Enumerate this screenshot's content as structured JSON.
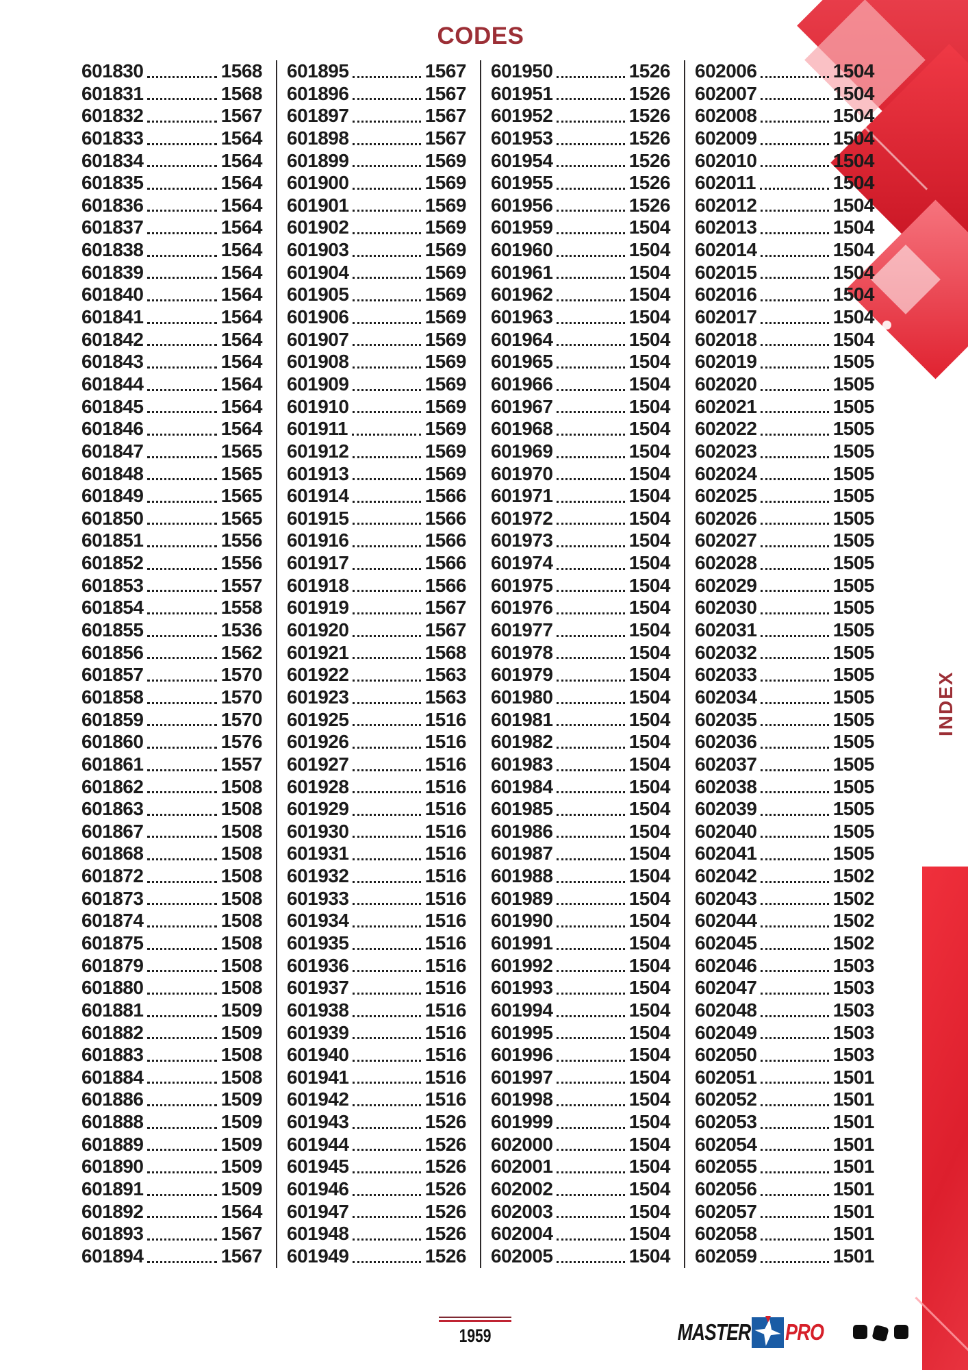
{
  "page": {
    "title": "CODES",
    "page_number": "1959",
    "index_tab_label": "INDEX"
  },
  "footer": {
    "logo_master": "MASTER",
    "logo_pro": "PRO"
  },
  "colors": {
    "title_red": "#9c2f36",
    "accent_red": "#e01f2c",
    "logo_blue": "#1a5ca5",
    "logo_red": "#d6202a"
  },
  "columns": [
    [
      [
        "601830",
        "1568"
      ],
      [
        "601831",
        "1568"
      ],
      [
        "601832",
        "1567"
      ],
      [
        "601833",
        "1564"
      ],
      [
        "601834",
        "1564"
      ],
      [
        "601835",
        "1564"
      ],
      [
        "601836",
        "1564"
      ],
      [
        "601837",
        "1564"
      ],
      [
        "601838",
        "1564"
      ],
      [
        "601839",
        "1564"
      ],
      [
        "601840",
        "1564"
      ],
      [
        "601841",
        "1564"
      ],
      [
        "601842",
        "1564"
      ],
      [
        "601843",
        "1564"
      ],
      [
        "601844",
        "1564"
      ],
      [
        "601845",
        "1564"
      ],
      [
        "601846",
        "1564"
      ],
      [
        "601847",
        "1565"
      ],
      [
        "601848",
        "1565"
      ],
      [
        "601849",
        "1565"
      ],
      [
        "601850",
        "1565"
      ],
      [
        "601851",
        "1556"
      ],
      [
        "601852",
        "1556"
      ],
      [
        "601853",
        "1557"
      ],
      [
        "601854",
        "1558"
      ],
      [
        "601855",
        "1536"
      ],
      [
        "601856",
        "1562"
      ],
      [
        "601857",
        "1570"
      ],
      [
        "601858",
        "1570"
      ],
      [
        "601859",
        "1570"
      ],
      [
        "601860",
        "1576"
      ],
      [
        "601861",
        "1557"
      ],
      [
        "601862",
        "1508"
      ],
      [
        "601863",
        "1508"
      ],
      [
        "601867",
        "1508"
      ],
      [
        "601868",
        "1508"
      ],
      [
        "601872",
        "1508"
      ],
      [
        "601873",
        "1508"
      ],
      [
        "601874",
        "1508"
      ],
      [
        "601875",
        "1508"
      ],
      [
        "601879",
        "1508"
      ],
      [
        "601880",
        "1508"
      ],
      [
        "601881",
        "1509"
      ],
      [
        "601882",
        "1509"
      ],
      [
        "601883",
        "1508"
      ],
      [
        "601884",
        "1508"
      ],
      [
        "601886",
        "1509"
      ],
      [
        "601888",
        "1509"
      ],
      [
        "601889",
        "1509"
      ],
      [
        "601890",
        "1509"
      ],
      [
        "601891",
        "1509"
      ],
      [
        "601892",
        "1564"
      ],
      [
        "601893",
        "1567"
      ],
      [
        "601894",
        "1567"
      ]
    ],
    [
      [
        "601895",
        "1567"
      ],
      [
        "601896",
        "1567"
      ],
      [
        "601897",
        "1567"
      ],
      [
        "601898",
        "1567"
      ],
      [
        "601899",
        "1569"
      ],
      [
        "601900",
        "1569"
      ],
      [
        "601901",
        "1569"
      ],
      [
        "601902",
        "1569"
      ],
      [
        "601903",
        "1569"
      ],
      [
        "601904",
        "1569"
      ],
      [
        "601905",
        "1569"
      ],
      [
        "601906",
        "1569"
      ],
      [
        "601907",
        "1569"
      ],
      [
        "601908",
        "1569"
      ],
      [
        "601909",
        "1569"
      ],
      [
        "601910",
        "1569"
      ],
      [
        "601911",
        "1569"
      ],
      [
        "601912",
        "1569"
      ],
      [
        "601913",
        "1569"
      ],
      [
        "601914",
        "1566"
      ],
      [
        "601915",
        "1566"
      ],
      [
        "601916",
        "1566"
      ],
      [
        "601917",
        "1566"
      ],
      [
        "601918",
        "1566"
      ],
      [
        "601919",
        "1567"
      ],
      [
        "601920",
        "1567"
      ],
      [
        "601921",
        "1568"
      ],
      [
        "601922",
        "1563"
      ],
      [
        "601923",
        "1563"
      ],
      [
        "601925",
        "1516"
      ],
      [
        "601926",
        "1516"
      ],
      [
        "601927",
        "1516"
      ],
      [
        "601928",
        "1516"
      ],
      [
        "601929",
        "1516"
      ],
      [
        "601930",
        "1516"
      ],
      [
        "601931",
        "1516"
      ],
      [
        "601932",
        "1516"
      ],
      [
        "601933",
        "1516"
      ],
      [
        "601934",
        "1516"
      ],
      [
        "601935",
        "1516"
      ],
      [
        "601936",
        "1516"
      ],
      [
        "601937",
        "1516"
      ],
      [
        "601938",
        "1516"
      ],
      [
        "601939",
        "1516"
      ],
      [
        "601940",
        "1516"
      ],
      [
        "601941",
        "1516"
      ],
      [
        "601942",
        "1516"
      ],
      [
        "601943",
        "1526"
      ],
      [
        "601944",
        "1526"
      ],
      [
        "601945",
        "1526"
      ],
      [
        "601946",
        "1526"
      ],
      [
        "601947",
        "1526"
      ],
      [
        "601948",
        "1526"
      ],
      [
        "601949",
        "1526"
      ]
    ],
    [
      [
        "601950",
        "1526"
      ],
      [
        "601951",
        "1526"
      ],
      [
        "601952",
        "1526"
      ],
      [
        "601953",
        "1526"
      ],
      [
        "601954",
        "1526"
      ],
      [
        "601955",
        "1526"
      ],
      [
        "601956",
        "1526"
      ],
      [
        "601959",
        "1504"
      ],
      [
        "601960",
        "1504"
      ],
      [
        "601961",
        "1504"
      ],
      [
        "601962",
        "1504"
      ],
      [
        "601963",
        "1504"
      ],
      [
        "601964",
        "1504"
      ],
      [
        "601965",
        "1504"
      ],
      [
        "601966",
        "1504"
      ],
      [
        "601967",
        "1504"
      ],
      [
        "601968",
        "1504"
      ],
      [
        "601969",
        "1504"
      ],
      [
        "601970",
        "1504"
      ],
      [
        "601971",
        "1504"
      ],
      [
        "601972",
        "1504"
      ],
      [
        "601973",
        "1504"
      ],
      [
        "601974",
        "1504"
      ],
      [
        "601975",
        "1504"
      ],
      [
        "601976",
        "1504"
      ],
      [
        "601977",
        "1504"
      ],
      [
        "601978",
        "1504"
      ],
      [
        "601979",
        "1504"
      ],
      [
        "601980",
        "1504"
      ],
      [
        "601981",
        "1504"
      ],
      [
        "601982",
        "1504"
      ],
      [
        "601983",
        "1504"
      ],
      [
        "601984",
        "1504"
      ],
      [
        "601985",
        "1504"
      ],
      [
        "601986",
        "1504"
      ],
      [
        "601987",
        "1504"
      ],
      [
        "601988",
        "1504"
      ],
      [
        "601989",
        "1504"
      ],
      [
        "601990",
        "1504"
      ],
      [
        "601991",
        "1504"
      ],
      [
        "601992",
        "1504"
      ],
      [
        "601993",
        "1504"
      ],
      [
        "601994",
        "1504"
      ],
      [
        "601995",
        "1504"
      ],
      [
        "601996",
        "1504"
      ],
      [
        "601997",
        "1504"
      ],
      [
        "601998",
        "1504"
      ],
      [
        "601999",
        "1504"
      ],
      [
        "602000",
        "1504"
      ],
      [
        "602001",
        "1504"
      ],
      [
        "602002",
        "1504"
      ],
      [
        "602003",
        "1504"
      ],
      [
        "602004",
        "1504"
      ],
      [
        "602005",
        "1504"
      ]
    ],
    [
      [
        "602006",
        "1504"
      ],
      [
        "602007",
        "1504"
      ],
      [
        "602008",
        "1504"
      ],
      [
        "602009",
        "1504"
      ],
      [
        "602010",
        "1504"
      ],
      [
        "602011",
        "1504"
      ],
      [
        "602012",
        "1504"
      ],
      [
        "602013",
        "1504"
      ],
      [
        "602014",
        "1504"
      ],
      [
        "602015",
        "1504"
      ],
      [
        "602016",
        "1504"
      ],
      [
        "602017",
        "1504"
      ],
      [
        "602018",
        "1504"
      ],
      [
        "602019",
        "1505"
      ],
      [
        "602020",
        "1505"
      ],
      [
        "602021",
        "1505"
      ],
      [
        "602022",
        "1505"
      ],
      [
        "602023",
        "1505"
      ],
      [
        "602024",
        "1505"
      ],
      [
        "602025",
        "1505"
      ],
      [
        "602026",
        "1505"
      ],
      [
        "602027",
        "1505"
      ],
      [
        "602028",
        "1505"
      ],
      [
        "602029",
        "1505"
      ],
      [
        "602030",
        "1505"
      ],
      [
        "602031",
        "1505"
      ],
      [
        "602032",
        "1505"
      ],
      [
        "602033",
        "1505"
      ],
      [
        "602034",
        "1505"
      ],
      [
        "602035",
        "1505"
      ],
      [
        "602036",
        "1505"
      ],
      [
        "602037",
        "1505"
      ],
      [
        "602038",
        "1505"
      ],
      [
        "602039",
        "1505"
      ],
      [
        "602040",
        "1505"
      ],
      [
        "602041",
        "1505"
      ],
      [
        "602042",
        "1502"
      ],
      [
        "602043",
        "1502"
      ],
      [
        "602044",
        "1502"
      ],
      [
        "602045",
        "1502"
      ],
      [
        "602046",
        "1503"
      ],
      [
        "602047",
        "1503"
      ],
      [
        "602048",
        "1503"
      ],
      [
        "602049",
        "1503"
      ],
      [
        "602050",
        "1503"
      ],
      [
        "602051",
        "1501"
      ],
      [
        "602052",
        "1501"
      ],
      [
        "602053",
        "1501"
      ],
      [
        "602054",
        "1501"
      ],
      [
        "602055",
        "1501"
      ],
      [
        "602056",
        "1501"
      ],
      [
        "602057",
        "1501"
      ],
      [
        "602058",
        "1501"
      ],
      [
        "602059",
        "1501"
      ]
    ]
  ]
}
